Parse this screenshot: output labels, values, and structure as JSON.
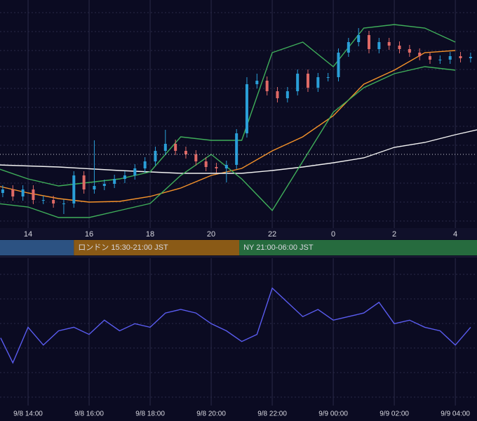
{
  "chart_data": [
    {
      "type": "candlestick",
      "xlim": [
        13.08,
        28.71
      ],
      "ylim": [
        0,
        325
      ],
      "xticks": [
        14,
        16,
        18,
        20,
        22,
        {
          "value": 24,
          "label": "0"
        },
        {
          "value": 26,
          "label": "2"
        },
        {
          "value": 28,
          "label": "4"
        }
      ],
      "up_color": "#2a9fd8",
      "down_color": "#e06a66",
      "x": [
        13.17,
        13.5,
        13.83,
        14.17,
        14.5,
        14.83,
        15.17,
        15.5,
        15.83,
        16.17,
        16.5,
        16.83,
        17.17,
        17.5,
        17.83,
        18.17,
        18.5,
        18.83,
        19.17,
        19.5,
        19.83,
        20.17,
        20.5,
        20.83,
        21.17,
        21.5,
        21.83,
        22.17,
        22.5,
        22.83,
        23.17,
        23.5,
        23.83,
        24.17,
        24.5,
        24.83,
        25.17,
        25.5,
        25.83,
        26.17,
        26.5,
        26.83,
        27.17,
        27.5,
        27.83,
        28.17,
        28.5
      ],
      "open": [
        50,
        55,
        45,
        55,
        40,
        40,
        35,
        35,
        75,
        55,
        60,
        63,
        70,
        75,
        85,
        95,
        110,
        120,
        110,
        105,
        95,
        87,
        85,
        90,
        135,
        205,
        210,
        195,
        185,
        195,
        220,
        200,
        215,
        215,
        250,
        265,
        275,
        255,
        265,
        260,
        255,
        250,
        245,
        240,
        240,
        245,
        242
      ],
      "high": [
        61,
        61,
        61,
        61,
        46,
        46,
        41,
        81,
        81,
        125,
        69,
        76,
        81,
        91,
        101,
        116,
        140,
        126,
        116,
        111,
        101,
        93,
        96,
        141,
        215,
        220,
        216,
        201,
        201,
        226,
        226,
        221,
        221,
        256,
        271,
        285,
        281,
        271,
        271,
        266,
        261,
        256,
        251,
        246,
        251,
        251,
        250
      ],
      "low": [
        44,
        39,
        39,
        34,
        34,
        29,
        20,
        29,
        49,
        49,
        54,
        57,
        64,
        69,
        79,
        89,
        104,
        104,
        99,
        89,
        81,
        79,
        65,
        84,
        129,
        199,
        189,
        179,
        179,
        189,
        194,
        194,
        209,
        209,
        244,
        259,
        249,
        249,
        254,
        249,
        244,
        239,
        234,
        234,
        234,
        236,
        236
      ],
      "close": [
        55,
        45,
        55,
        40,
        40,
        35,
        35,
        75,
        55,
        60,
        63,
        70,
        75,
        85,
        95,
        110,
        120,
        110,
        105,
        95,
        87,
        85,
        90,
        135,
        205,
        210,
        195,
        185,
        195,
        220,
        200,
        215,
        215,
        250,
        265,
        275,
        255,
        265,
        260,
        255,
        250,
        245,
        240,
        240,
        245,
        242,
        244
      ],
      "lines": [
        {
          "color": "#f5922a",
          "x": [
            13,
            14,
            15,
            16,
            17,
            18,
            19,
            20,
            21,
            22,
            23,
            24,
            25,
            26,
            27,
            28
          ],
          "values": [
            60,
            50,
            42,
            37,
            38,
            45,
            57,
            75,
            85,
            110,
            130,
            160,
            205,
            225,
            250,
            253
          ]
        },
        {
          "color": "#f2f2f2",
          "x": [
            13,
            15,
            17,
            19,
            21,
            22,
            23,
            24,
            25,
            26,
            27,
            28,
            28.71
          ],
          "values": [
            90,
            87,
            82,
            78,
            78,
            82,
            87,
            93,
            100,
            115,
            122,
            133,
            140
          ]
        },
        {
          "color": "#3fae5a",
          "x": [
            13,
            14,
            15,
            16,
            17,
            18,
            19,
            20,
            21,
            22,
            23,
            24,
            25,
            26,
            27,
            28
          ],
          "values": [
            85,
            70,
            60,
            65,
            70,
            80,
            130,
            125,
            125,
            250,
            265,
            230,
            285,
            290,
            285,
            265
          ]
        },
        {
          "color": "#3fae5a",
          "x": [
            13,
            14,
            15,
            16,
            17,
            18,
            19,
            20,
            21,
            22,
            23,
            24,
            25,
            26,
            27,
            28
          ],
          "values": [
            35,
            30,
            15,
            15,
            25,
            35,
            75,
            105,
            70,
            25,
            95,
            165,
            200,
            220,
            230,
            225
          ]
        }
      ],
      "price_line": 105,
      "sessions": [
        {
          "label": null,
          "start": 13.08,
          "end": 15.5,
          "color": "#2c5282"
        },
        {
          "label": "ロンドン 15:30-21:00 JST",
          "start": 15.5,
          "end": 20.92,
          "color": "#8a5a16"
        },
        {
          "label": "NY 21:00-06:00 JST",
          "start": 20.92,
          "end": 30,
          "color": "#266b3e"
        }
      ]
    },
    {
      "type": "line",
      "xlim": [
        13.08,
        28.71
      ],
      "ylim": [
        0,
        207
      ],
      "color": "#5a5cf0",
      "xticks": [
        {
          "value": 14,
          "label": "9/8 14:00"
        },
        {
          "value": 16,
          "label": "9/8 16:00"
        },
        {
          "value": 18,
          "label": "9/8 18:00"
        },
        {
          "value": 20,
          "label": "9/8 20:00"
        },
        {
          "value": 22,
          "label": "9/8 22:00"
        },
        {
          "value": 24,
          "label": "9/9 00:00"
        },
        {
          "value": 26,
          "label": "9/9 02:00"
        },
        {
          "value": 28,
          "label": "9/9 04:00"
        }
      ],
      "x": [
        13.1,
        13.5,
        14,
        14.5,
        15,
        15.5,
        16,
        16.5,
        17,
        17.5,
        18,
        18.5,
        19,
        19.5,
        20,
        20.5,
        21,
        21.5,
        22,
        22.5,
        23,
        23.5,
        24,
        24.5,
        25,
        25.5,
        26,
        26.5,
        27,
        27.5,
        28,
        28.5
      ],
      "values": [
        95,
        60,
        110,
        85,
        105,
        110,
        100,
        120,
        105,
        115,
        110,
        130,
        135,
        130,
        115,
        105,
        90,
        100,
        165,
        145,
        125,
        135,
        120,
        125,
        130,
        145,
        115,
        120,
        110,
        105,
        85,
        110
      ]
    }
  ]
}
